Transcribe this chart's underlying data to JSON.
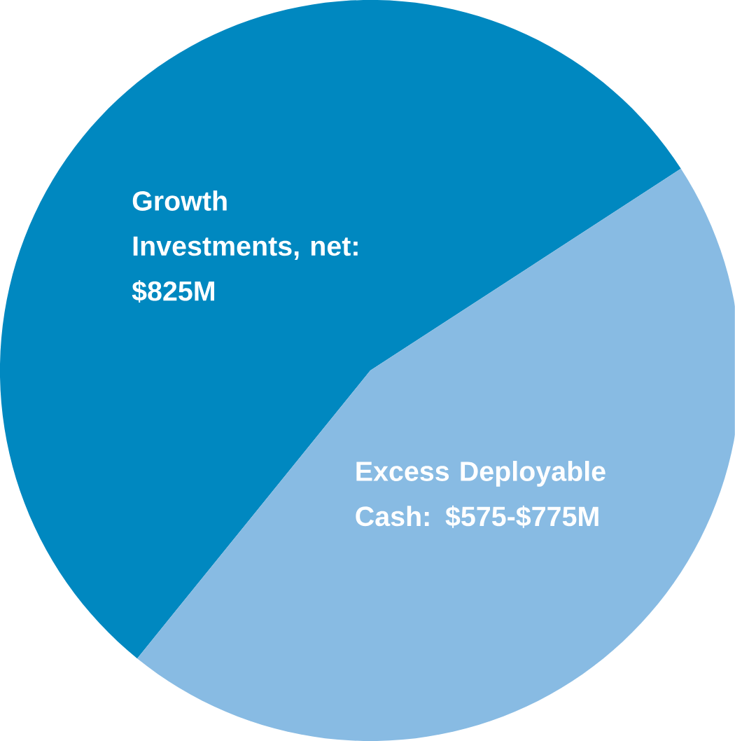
{
  "chart_data": {
    "type": "pie",
    "categories": [
      "Growth Investments, net: $825M",
      "Excess Deployable Cash: $575-$775M"
    ],
    "values": [
      55,
      45
    ],
    "colors": [
      "#0088c0",
      "#88bbe3"
    ]
  }
}
